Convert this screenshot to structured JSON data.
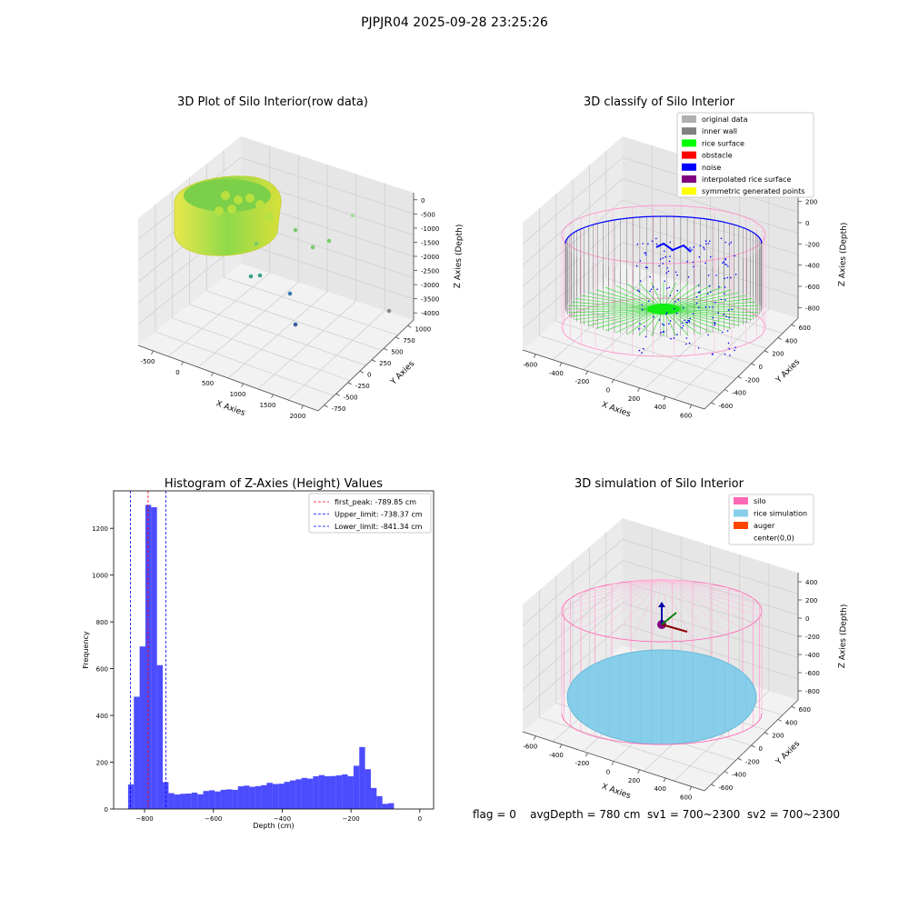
{
  "figure": {
    "title": "PJPJR04 2025-09-28 23:25:26",
    "caption": "flag = 0    avgDepth = 780 cm  sv1 = 700~2300  sv2 = 700~2300"
  },
  "colors": {
    "histogram_bar": "#0000ff",
    "first_peak_line": "#ff0000",
    "limit_lines": "#0000ff",
    "silo_wire": "#ff69b4",
    "rice_simulation": "#87ceeb",
    "auger": "#ff4500"
  },
  "plot1": {
    "title": "3D Plot of Silo Interior(row data)",
    "xlabel": "X Axies",
    "ylabel": "Y Axies",
    "zlabel": "Z Axies (Depth)",
    "xticks": [
      "-500",
      "0",
      "500",
      "1000",
      "1500",
      "2000"
    ],
    "yticks": [
      "1000",
      "750",
      "500",
      "250",
      "0",
      "-250",
      "-500",
      "-750"
    ],
    "zticks": [
      "0",
      "-500",
      "-1000",
      "-1500",
      "-2000",
      "-2500",
      "-3000",
      "-3500",
      "-4000"
    ]
  },
  "plot2": {
    "title": "3D classify of Silo Interior",
    "xlabel": "X Axies",
    "ylabel": "Y Axies",
    "zlabel": "Z Axies (Depth)",
    "xticks": [
      "-600",
      "-400",
      "-200",
      "0",
      "200",
      "400",
      "600"
    ],
    "yticks": [
      "600",
      "400",
      "200",
      "0",
      "-200",
      "-400",
      "-600"
    ],
    "zticks": [
      "200",
      "0",
      "-200",
      "-400",
      "-600",
      "-800"
    ],
    "legend": [
      {
        "label": "original data",
        "color": "#b0b0b0"
      },
      {
        "label": "inner wall",
        "color": "#808080"
      },
      {
        "label": "rice surface",
        "color": "#00ff00"
      },
      {
        "label": "obstacle",
        "color": "#ff0000"
      },
      {
        "label": "noise",
        "color": "#0000ff"
      },
      {
        "label": "interpolated rice surface",
        "color": "#800080"
      },
      {
        "label": "symmetric generated points",
        "color": "#ffff00"
      }
    ]
  },
  "plot4": {
    "title": "3D simulation of Silo Interior",
    "xlabel": "X Axies",
    "ylabel": "Y Axies",
    "zlabel": "Z Axies (Depth)",
    "xticks": [
      "-600",
      "-400",
      "-200",
      "0",
      "200",
      "400",
      "600"
    ],
    "yticks": [
      "600",
      "400",
      "200",
      "0",
      "-200",
      "-400",
      "-600"
    ],
    "zticks": [
      "400",
      "200",
      "0",
      "-200",
      "-400",
      "-600",
      "-800"
    ],
    "legend": [
      {
        "label": "silo",
        "color": "#ff69b4"
      },
      {
        "label": "rice simulation",
        "color": "#87ceeb"
      },
      {
        "label": "auger",
        "color": "#ff4500"
      },
      {
        "label": "center(0,0)",
        "color": "#ffffff"
      }
    ]
  },
  "chart_data": [
    {
      "type": "bar",
      "title": "Histogram of Z-Axies (Height) Values",
      "xlabel": "Depth (cm)",
      "ylabel": "Frequency",
      "xlim": [
        -890,
        40
      ],
      "ylim": [
        0,
        1360
      ],
      "grid": false,
      "legend_position": "top-right",
      "xticks": [
        -800,
        -600,
        -400,
        -200,
        0
      ],
      "yticks": [
        0,
        200,
        400,
        600,
        800,
        1000,
        1200
      ],
      "bin_width": 16.8,
      "bin_start": -848,
      "values": [
        105,
        480,
        695,
        1300,
        1290,
        615,
        115,
        68,
        62,
        65,
        66,
        70,
        63,
        77,
        80,
        75,
        82,
        84,
        82,
        97,
        100,
        95,
        98,
        102,
        112,
        107,
        108,
        116,
        122,
        127,
        133,
        130,
        140,
        145,
        140,
        141,
        144,
        148,
        140,
        185,
        265,
        170,
        90,
        55,
        22,
        25
      ],
      "reference_lines": [
        {
          "name": "first_peak: -789.85 cm",
          "x": -789.85,
          "color": "#ff0000"
        },
        {
          "name": "Upper_limit: -738.37 cm",
          "x": -738.37,
          "color": "#0000ff"
        },
        {
          "name": "Lower_limit: -841.34 cm",
          "x": -841.34,
          "color": "#0000ff"
        }
      ]
    }
  ]
}
